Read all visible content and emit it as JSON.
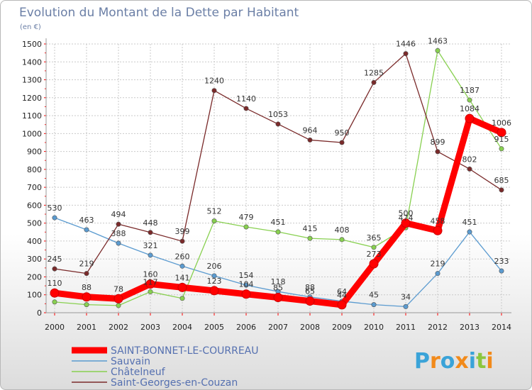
{
  "title": "Evolution du Montant de la Dette par Habitant",
  "subtitle": "(en €)",
  "logo": "Proxiti",
  "colors": {
    "grid": "#c9c9c9",
    "axis": "#999999",
    "logo": [
      "#3aa3d8",
      "#f28a1a",
      "#3aa3d8",
      "#f28a1a",
      "#3aa3d8",
      "#8cc63e",
      "#f28a1a"
    ]
  },
  "chart_data": {
    "type": "line",
    "title": "Evolution du Montant de la Dette par Habitant",
    "subtitle": "(en €)",
    "xlabel": "",
    "ylabel": "",
    "x": [
      "2000",
      "2001",
      "2002",
      "2003",
      "2004",
      "2005",
      "2006",
      "2007",
      "2008",
      "2009",
      "2010",
      "2011",
      "2012",
      "2013",
      "2014"
    ],
    "ylim": [
      0,
      1500
    ],
    "yticks": [
      0,
      100,
      200,
      300,
      400,
      500,
      600,
      700,
      800,
      900,
      1000,
      1100,
      1200,
      1300,
      1400,
      1500
    ],
    "grid": "horizontal",
    "legend_position": "bottom-left",
    "series": [
      {
        "name": "SAINT-BONNET-LE-COURREAU",
        "color": "#ff0000",
        "emphasis": true,
        "values": [
          110,
          88,
          78,
          160,
          141,
          123,
          104,
          85,
          65,
          44,
          273,
          500,
          458,
          1084,
          1006
        ],
        "labels": [
          "110",
          "88",
          "78",
          "160",
          "141",
          "123",
          "104",
          "85",
          "65",
          "44",
          "273",
          "500",
          "458",
          "1084",
          "1006"
        ]
      },
      {
        "name": "Sauvain",
        "color": "#5b9bd0",
        "values": [
          530,
          463,
          388,
          321,
          260,
          206,
          154,
          118,
          88,
          64,
          45,
          34,
          219,
          451,
          233
        ],
        "labels": [
          "530",
          "463",
          "388",
          "321",
          "260",
          "206",
          "154",
          "118",
          "88",
          "64",
          "45",
          "34",
          "219",
          "451",
          "233"
        ]
      },
      {
        "name": "Châtelneuf",
        "color": "#88d050",
        "values": [
          60,
          45,
          40,
          117,
          80,
          512,
          479,
          451,
          415,
          408,
          365,
          474,
          1463,
          1187,
          915
        ],
        "labels": [
          "",
          "",
          "",
          "117",
          "",
          "512",
          "479",
          "451",
          "415",
          "408",
          "365",
          "474",
          "1463",
          "1187",
          "915"
        ]
      },
      {
        "name": "Saint-Georges-en-Couzan",
        "color": "#7a2a2a",
        "values": [
          245,
          219,
          494,
          448,
          399,
          1240,
          1140,
          1053,
          964,
          950,
          1285,
          1446,
          899,
          802,
          685
        ],
        "labels": [
          "245",
          "219",
          "494",
          "448",
          "399",
          "1240",
          "1140",
          "1053",
          "964",
          "950",
          "1285",
          "1446",
          "899",
          "802",
          "685"
        ]
      }
    ]
  }
}
